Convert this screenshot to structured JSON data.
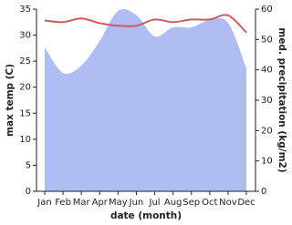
{
  "chart_data": {
    "type": "area-line",
    "x_label": "date (month)",
    "y_label": "max temp (C)",
    "y2_label": "med. precipitation (kg/m2)",
    "categories": [
      "Jan",
      "Feb",
      "Mar",
      "Apr",
      "May",
      "Jun",
      "Jul",
      "Aug",
      "Sep",
      "Oct",
      "Nov",
      "Dec"
    ],
    "series": [
      {
        "name": "max temp",
        "color": "#cd5c5c",
        "axis": "y",
        "values": [
          32.8,
          32.5,
          33.2,
          32.3,
          31.8,
          31.8,
          33.0,
          32.5,
          33.0,
          33.0,
          33.8,
          30.5
        ]
      },
      {
        "name": "precipitation",
        "color": "#b0bcf4",
        "axis": "y2",
        "values": [
          47.4,
          39.0,
          41.4,
          49.5,
          59.4,
          58.0,
          51.0,
          54.0,
          54.0,
          56.4,
          55.5,
          40.5
        ]
      }
    ],
    "ylim": [
      0,
      35
    ],
    "yticks": [
      0,
      5,
      10,
      15,
      20,
      25,
      30,
      35
    ],
    "y2lim": [
      0,
      60
    ],
    "y2ticks": [
      0,
      10,
      20,
      30,
      40,
      50,
      60
    ]
  }
}
